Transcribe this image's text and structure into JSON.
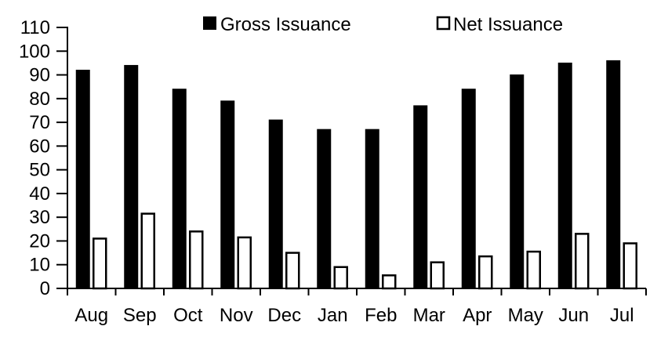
{
  "page": {
    "background": "#ffffff"
  },
  "chart_data": {
    "type": "bar",
    "title": "",
    "xlabel": "",
    "ylabel": "",
    "categories": [
      "Aug",
      "Sep",
      "Oct",
      "Nov",
      "Dec",
      "Jan",
      "Feb",
      "Mar",
      "Apr",
      "May",
      "Jun",
      "Jul"
    ],
    "series": [
      {
        "name": "Gross Issuance",
        "fill": "#000000",
        "stroke": "#000000",
        "values": [
          92,
          94,
          84,
          79,
          71,
          67,
          67,
          77,
          84,
          90,
          95,
          96
        ]
      },
      {
        "name": "Net Issuance",
        "fill": "#ffffff",
        "stroke": "#000000",
        "values": [
          21,
          31.5,
          24,
          21.5,
          15,
          9,
          5.5,
          11,
          13.5,
          15.5,
          23,
          19
        ]
      }
    ],
    "ylim": [
      0,
      110
    ],
    "ytick_step": 10,
    "y_tick_labels": [
      "0",
      "10",
      "20",
      "30",
      "40",
      "50",
      "60",
      "70",
      "80",
      "90",
      "100",
      "110"
    ],
    "grid": false,
    "legend_position": "top",
    "axis_color": "#000000",
    "text_color": "#000000"
  }
}
